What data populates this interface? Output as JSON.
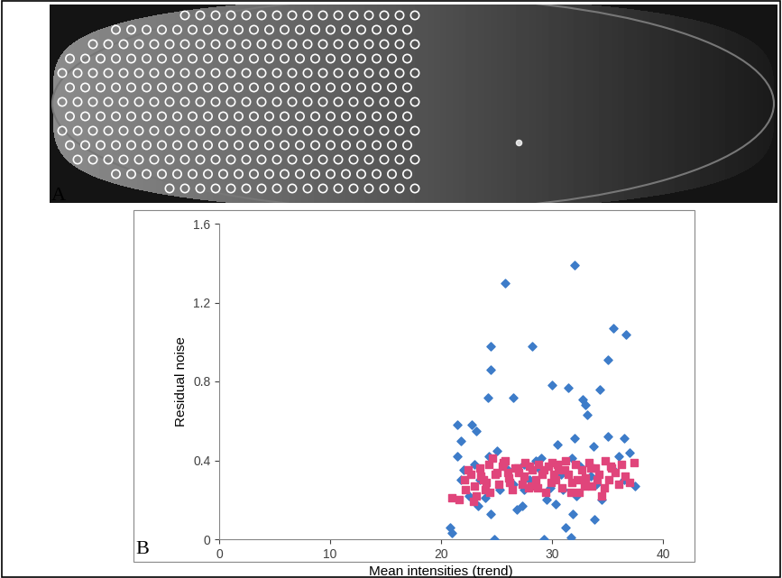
{
  "panel_labels": [
    "A",
    "B"
  ],
  "chart_data": {
    "type": "scatter",
    "x_label": "Mean intensities (trend)",
    "y_label": "Residual noise",
    "xlim": [
      0,
      40
    ],
    "xticks": [
      0,
      10,
      20,
      30,
      40
    ],
    "ylim": [
      0,
      1.6
    ],
    "yticks": [
      0,
      0.4,
      0.8,
      1.2,
      1.6
    ],
    "grid": false,
    "series": [
      {
        "color": "#3d7cc9",
        "marker": "diamond",
        "x": [
          25.8,
          32.0,
          35.5,
          36.7,
          24.5,
          28.2,
          24.5,
          35.0,
          30.0,
          31.5,
          34.3,
          26.5,
          24.2,
          32.8,
          33.0,
          33.2,
          21.5,
          22.8,
          23.2,
          21.8,
          25.0,
          32.0,
          36.5,
          35.0,
          37.0,
          30.5,
          33.7,
          29.0,
          28.5,
          24.3,
          27.5,
          31.8,
          20.8,
          21.0,
          24.8,
          29.3,
          31.7,
          31.2,
          33.8,
          24.5,
          26.8,
          27.3,
          29.5,
          31.9,
          25.3,
          22.5,
          23.3,
          27.5,
          30.3,
          34.5,
          36.5,
          37.5,
          28.0,
          26.0,
          23.5,
          22.0,
          21.8,
          30.8,
          32.5,
          33.5,
          35.5,
          24.0,
          26.5,
          29.8,
          31.0,
          34.0,
          23.0,
          21.5,
          28.8,
          32.2,
          36.0
        ],
        "y": [
          1.3,
          1.39,
          1.07,
          1.04,
          0.98,
          0.98,
          0.86,
          0.91,
          0.78,
          0.77,
          0.76,
          0.72,
          0.72,
          0.71,
          0.68,
          0.63,
          0.58,
          0.58,
          0.55,
          0.5,
          0.45,
          0.51,
          0.51,
          0.52,
          0.44,
          0.48,
          0.47,
          0.41,
          0.4,
          0.42,
          0.38,
          0.41,
          0.06,
          0.03,
          0.0,
          0.0,
          0.01,
          0.06,
          0.1,
          0.13,
          0.15,
          0.17,
          0.2,
          0.13,
          0.25,
          0.22,
          0.17,
          0.25,
          0.18,
          0.2,
          0.3,
          0.27,
          0.3,
          0.35,
          0.3,
          0.35,
          0.3,
          0.33,
          0.37,
          0.32,
          0.35,
          0.21,
          0.28,
          0.26,
          0.25,
          0.28,
          0.38,
          0.42,
          0.36,
          0.22,
          0.42
        ]
      },
      {
        "color": "#e0457b",
        "marker": "square",
        "x": [
          21.0,
          21.6,
          22.1,
          22.4,
          22.7,
          23.0,
          23.2,
          23.5,
          23.8,
          24.0,
          24.3,
          24.6,
          24.9,
          25.2,
          25.5,
          25.8,
          26.1,
          26.4,
          26.7,
          27.0,
          27.3,
          27.6,
          27.9,
          28.2,
          28.5,
          28.8,
          29.1,
          29.4,
          29.7,
          30.0,
          30.3,
          30.6,
          30.9,
          31.2,
          31.5,
          31.8,
          32.1,
          32.4,
          32.7,
          33.0,
          33.3,
          33.6,
          33.9,
          34.2,
          34.5,
          34.8,
          35.1,
          35.4,
          35.7,
          36.0,
          36.3,
          36.6,
          37.0,
          37.4,
          22.9,
          23.6,
          24.4,
          25.0,
          25.6,
          26.2,
          26.9,
          27.5,
          28.1,
          28.7,
          29.3,
          29.9,
          30.5,
          31.1,
          31.7,
          32.3,
          32.9,
          33.5,
          34.1,
          34.7,
          35.3,
          22.2,
          24.1,
          26.0,
          28.0,
          30.2
        ],
        "y": [
          0.21,
          0.2,
          0.3,
          0.35,
          0.33,
          0.27,
          0.22,
          0.36,
          0.3,
          0.25,
          0.38,
          0.41,
          0.33,
          0.28,
          0.37,
          0.4,
          0.31,
          0.25,
          0.36,
          0.34,
          0.28,
          0.39,
          0.26,
          0.35,
          0.3,
          0.38,
          0.33,
          0.24,
          0.37,
          0.39,
          0.3,
          0.35,
          0.26,
          0.4,
          0.33,
          0.29,
          0.38,
          0.24,
          0.35,
          0.31,
          0.39,
          0.27,
          0.36,
          0.33,
          0.22,
          0.4,
          0.3,
          0.36,
          0.34,
          0.28,
          0.38,
          0.32,
          0.29,
          0.39,
          0.19,
          0.32,
          0.24,
          0.34,
          0.39,
          0.29,
          0.36,
          0.32,
          0.27,
          0.26,
          0.35,
          0.29,
          0.38,
          0.35,
          0.24,
          0.3,
          0.27,
          0.36,
          0.3,
          0.26,
          0.37,
          0.25,
          0.29,
          0.34,
          0.37,
          0.33
        ]
      }
    ]
  }
}
